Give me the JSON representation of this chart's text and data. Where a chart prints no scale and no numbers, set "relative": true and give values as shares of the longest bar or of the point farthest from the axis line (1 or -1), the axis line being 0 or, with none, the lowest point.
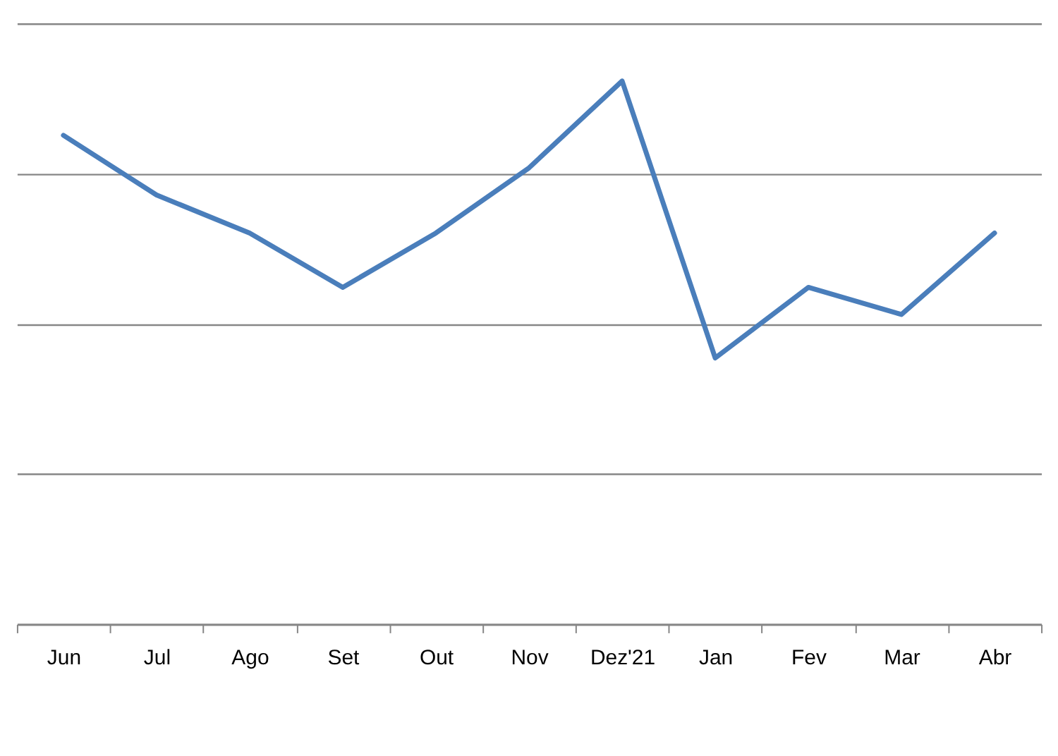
{
  "chart_data": {
    "type": "line",
    "categories": [
      "Jun",
      "Jul",
      "Ago",
      "Set",
      "Out",
      "Nov",
      "Dez'21",
      "Jan",
      "Fev",
      "Mar",
      "Abr"
    ],
    "relative": true,
    "grid": "y",
    "series": [
      {
        "color": "#4a7ebb",
        "values": [
          0.9,
          0.79,
          0.72,
          0.62,
          0.72,
          0.84,
          1,
          0.49,
          0.62,
          0.57,
          0.72
        ]
      }
    ]
  }
}
